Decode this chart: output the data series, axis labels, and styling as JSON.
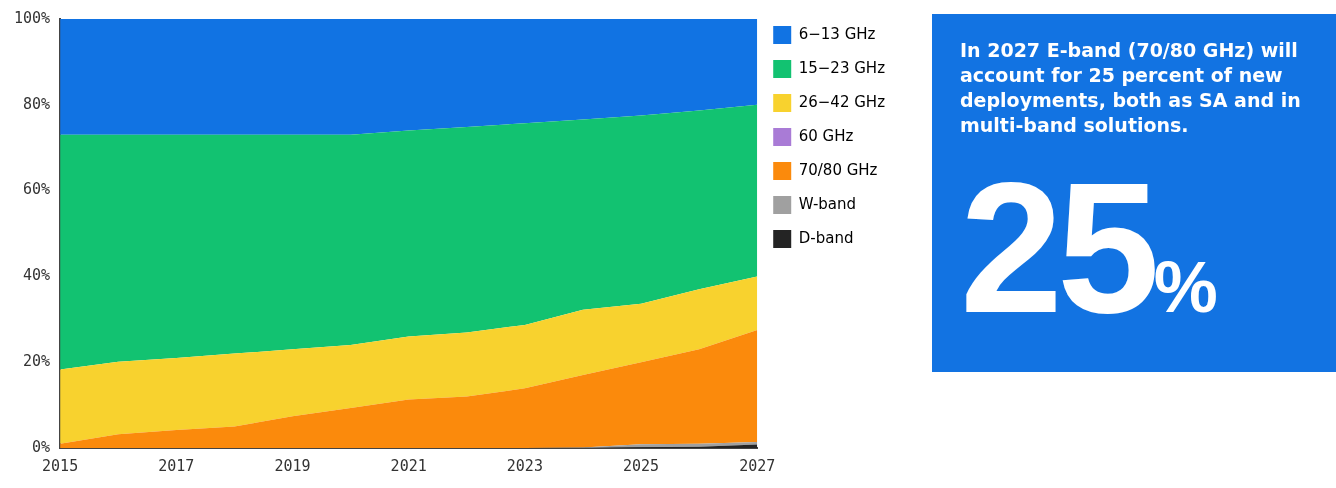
{
  "chart_data": [
    {
      "type": "area",
      "stacked": true,
      "x": [
        2015,
        2016,
        2017,
        2018,
        2019,
        2020,
        2021,
        2022,
        2023,
        2024,
        2025,
        2026,
        2027
      ],
      "xlim": [
        2015,
        2027
      ],
      "xticks": [
        2015,
        2017,
        2019,
        2021,
        2023,
        2025,
        2027
      ],
      "ylim": [
        0,
        100
      ],
      "yticks": [
        {
          "value": 0,
          "label": "0%"
        },
        {
          "value": 20,
          "label": "20%"
        },
        {
          "value": 40,
          "label": "40%"
        },
        {
          "value": 60,
          "label": "60%"
        },
        {
          "value": 80,
          "label": "80%"
        },
        {
          "value": 100,
          "label": "100%"
        }
      ],
      "grid": false,
      "legend": "right",
      "marker": "none",
      "series": [
        {
          "name": "D-band",
          "color": "#242424",
          "values": [
            0,
            0,
            0,
            0,
            0,
            0,
            0,
            0,
            0,
            0,
            0.2,
            0.3,
            0.8
          ]
        },
        {
          "name": "W-band",
          "color": "#a0a0a0",
          "values": [
            0,
            0,
            0,
            0,
            0,
            0,
            0,
            0,
            0,
            0.1,
            0.7,
            0.7,
            0.6
          ]
        },
        {
          "name": "70/80 GHz",
          "color": "#fb8a0c",
          "values": [
            1,
            3.2,
            4.2,
            5,
            7.4,
            9.3,
            11.3,
            12,
            13.9,
            16.9,
            19.1,
            22,
            26.1
          ]
        },
        {
          "name": "60 GHz",
          "color": "#a97bd6",
          "values": [
            null,
            null,
            null,
            null,
            null,
            null,
            null,
            null,
            null,
            null,
            null,
            null,
            null
          ]
        },
        {
          "name": "26−42 GHz",
          "color": "#f8d22e",
          "values": [
            17.3,
            16.9,
            16.8,
            17,
            15.6,
            14.7,
            14.7,
            14.9,
            14.8,
            15.2,
            13.6,
            14,
            12.5
          ]
        },
        {
          "name": "15−23 GHz",
          "color": "#12c271",
          "values": [
            54.7,
            52.9,
            52,
            51,
            50,
            49,
            48,
            47.9,
            47,
            44.4,
            43.9,
            41.7,
            40
          ]
        },
        {
          "name": "6−13 GHz",
          "color": "#1173e3",
          "values": [
            27,
            27,
            27,
            27,
            27,
            27,
            26,
            25.2,
            24.3,
            23.4,
            22.5,
            21.3,
            20
          ]
        }
      ]
    },
    {
      "type": "other",
      "title": "In 2027 E-band (70/80 GHz) will account for 25 percent of new deployments, both as SA and in multi-band solutions.",
      "annotations": [
        "25%"
      ]
    }
  ]
}
